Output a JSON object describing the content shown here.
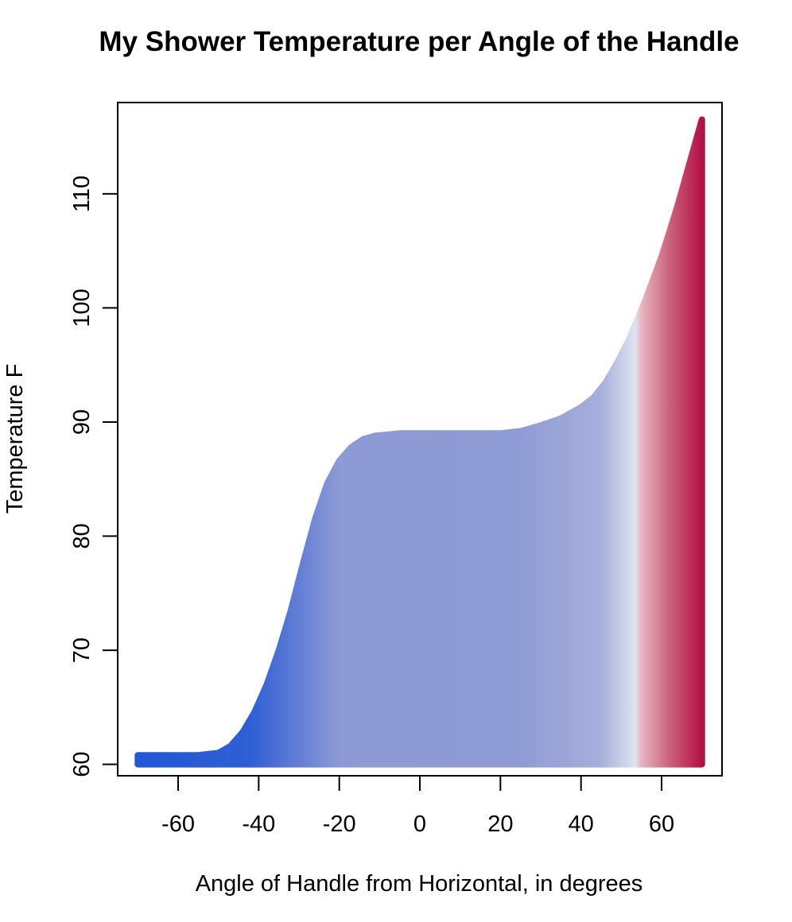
{
  "chart_data": {
    "type": "area",
    "title": "My Shower Temperature per Angle of the Handle",
    "xlabel": "Angle of Handle from Horizontal, in degrees",
    "ylabel": "Temperature F",
    "xlim": [
      -75,
      75
    ],
    "ylim": [
      59,
      118
    ],
    "xticks": [
      -60,
      -40,
      -20,
      0,
      20,
      40,
      60
    ],
    "yticks": [
      60,
      70,
      80,
      90,
      100,
      110
    ],
    "baseline": 60,
    "x": [
      -70,
      -65,
      -60,
      -55,
      -50,
      -47,
      -44,
      -41,
      -38,
      -35,
      -32,
      -29,
      -26,
      -23,
      -20,
      -17,
      -14,
      -11,
      -8,
      -5,
      0,
      10,
      20,
      25,
      30,
      35,
      40,
      43,
      46,
      49,
      52,
      54,
      56,
      58,
      60,
      62,
      64,
      66,
      68,
      70
    ],
    "values": [
      60.8,
      60.8,
      60.8,
      60.8,
      61.0,
      61.6,
      62.8,
      64.6,
      67.0,
      70.0,
      73.5,
      77.6,
      81.5,
      84.6,
      86.6,
      87.8,
      88.5,
      88.8,
      88.9,
      89.0,
      89.0,
      89.0,
      89.0,
      89.2,
      89.7,
      90.3,
      91.3,
      92.1,
      93.4,
      95.2,
      97.3,
      99.0,
      100.7,
      102.6,
      104.5,
      106.7,
      109.0,
      111.5,
      114.0,
      116.5
    ],
    "color_scale": {
      "stops": [
        {
          "x": -70,
          "color": "#2158d6"
        },
        {
          "x": -42,
          "color": "#2f5fd4"
        },
        {
          "x": -20,
          "color": "#8d9ad5"
        },
        {
          "x": 25,
          "color": "#8f9bd4"
        },
        {
          "x": 45,
          "color": "#a7afdb"
        },
        {
          "x": 53.5,
          "color": "#dfe3f0"
        },
        {
          "x": 55,
          "color": "#e6b5bf"
        },
        {
          "x": 62,
          "color": "#c9627c"
        },
        {
          "x": 70,
          "color": "#b31245"
        }
      ]
    },
    "grid": false
  }
}
